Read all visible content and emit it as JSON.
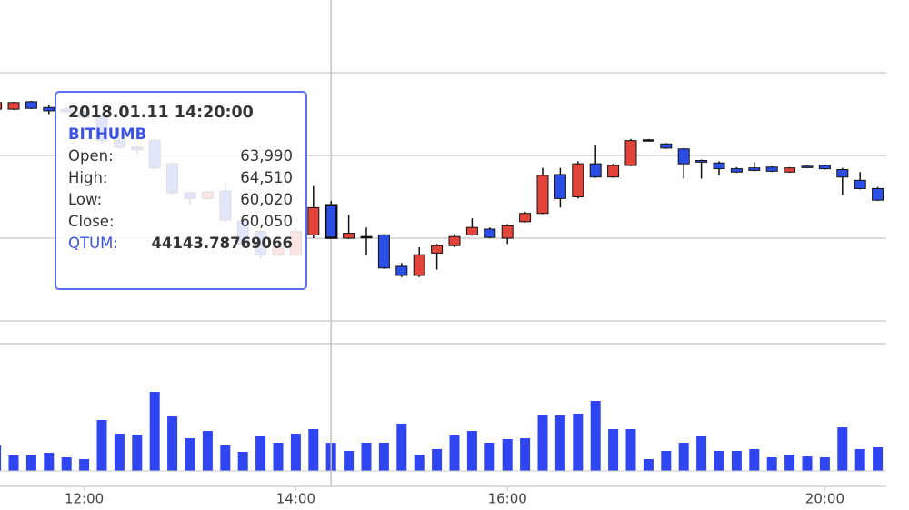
{
  "chart_data": {
    "type": "candlestick",
    "categories": [
      null,
      null,
      null,
      null,
      null,
      "12:00",
      null,
      null,
      null,
      null,
      null,
      null,
      null,
      null,
      null,
      null,
      null,
      "14:00",
      null,
      null,
      null,
      null,
      null,
      null,
      null,
      null,
      null,
      null,
      null,
      "16:00",
      null,
      null,
      null,
      null,
      null,
      null,
      null,
      null,
      null,
      null,
      null,
      null,
      null,
      null,
      null,
      null,
      null,
      "20:00",
      null,
      null,
      null
    ],
    "open": [
      75600,
      75600,
      76500,
      75800,
      75600,
      75300,
      74700,
      71800,
      71000,
      71800,
      69000,
      65500,
      64800,
      65700,
      62100,
      60800,
      58000,
      58000,
      60400,
      63990,
      60000,
      60200,
      60400,
      56600,
      55500,
      58200,
      59100,
      60400,
      61100,
      60000,
      62000,
      63000,
      67700,
      65000,
      69000,
      67400,
      68800,
      71900,
      71400,
      70800,
      69400,
      69100,
      68400,
      68500,
      68600,
      68000,
      68700,
      68800,
      68300,
      67000,
      66000
    ],
    "high": [
      76500,
      76500,
      76600,
      76100,
      75800,
      75500,
      74900,
      72200,
      71300,
      72000,
      69200,
      65600,
      65700,
      66800,
      62500,
      61000,
      59500,
      61200,
      66300,
      64510,
      62800,
      61300,
      60500,
      57000,
      58900,
      59300,
      60500,
      62400,
      61300,
      61700,
      63200,
      68500,
      68500,
      69300,
      71200,
      69000,
      72000,
      72000,
      71500,
      70900,
      69500,
      69300,
      68600,
      69200,
      68700,
      68600,
      68800,
      68900,
      68500,
      68000,
      66200
    ],
    "low": [
      75500,
      75500,
      75600,
      75000,
      75100,
      74400,
      71500,
      70800,
      70200,
      68300,
      65300,
      64000,
      64700,
      62000,
      59000,
      57500,
      57800,
      57800,
      60000,
      60020,
      59900,
      58000,
      56300,
      55300,
      55300,
      56200,
      58900,
      60300,
      60000,
      59300,
      61900,
      62900,
      63700,
      64800,
      67300,
      67300,
      68700,
      71800,
      70800,
      67200,
      67200,
      67600,
      67900,
      68100,
      68000,
      67900,
      68500,
      68300,
      65200,
      65900,
      64500
    ],
    "close": [
      76400,
      76400,
      75700,
      75400,
      75300,
      74600,
      71800,
      71000,
      70700,
      68500,
      65500,
      64800,
      65600,
      62200,
      59300,
      58000,
      59000,
      60800,
      63700,
      60050,
      60600,
      60200,
      56400,
      55500,
      58000,
      59100,
      60200,
      61300,
      60100,
      61500,
      63000,
      67600,
      64800,
      69000,
      67400,
      68800,
      71800,
      71900,
      70900,
      69000,
      69200,
      68400,
      68000,
      68200,
      68100,
      68500,
      68600,
      68400,
      67400,
      66000,
      64600
    ],
    "up_color": "#e2443a",
    "down_color": "#2b4ee6",
    "flat_color": "#111111",
    "ylim": [
      50000,
      88800
    ],
    "yticks": [
      50000,
      60000,
      70000,
      80000
    ],
    "grid": true,
    "highlight_index": 19,
    "volume": {
      "color": "#2f45f2",
      "ylim": [
        0,
        200000
      ],
      "values": [
        40000,
        24300,
        24300,
        28600,
        21400,
        18600,
        80000,
        58500,
        57100,
        124200,
        85700,
        51400,
        62800,
        40000,
        30000,
        54300,
        44300,
        58500,
        65700,
        44143.78769066,
        31400,
        44300,
        44300,
        74300,
        25700,
        34300,
        55700,
        62800,
        44300,
        50000,
        51400,
        88500,
        87100,
        90000,
        110000,
        65700,
        65700,
        18600,
        31400,
        44300,
        54300,
        31400,
        31400,
        34300,
        21400,
        25700,
        22800,
        21400,
        68500,
        34300,
        37100
      ]
    },
    "tooltip": {
      "title": "2018.01.11 14:20:00",
      "exchange": "BITHUMB",
      "rows": [
        {
          "label": "Open:",
          "value": "63,990"
        },
        {
          "label": "High:",
          "value": "64,510"
        },
        {
          "label": "Low:",
          "value": "60,020"
        },
        {
          "label": "Close:",
          "value": "60,050"
        }
      ],
      "volume_label": "QTUM:",
      "volume_value": "44143.78769066"
    }
  }
}
